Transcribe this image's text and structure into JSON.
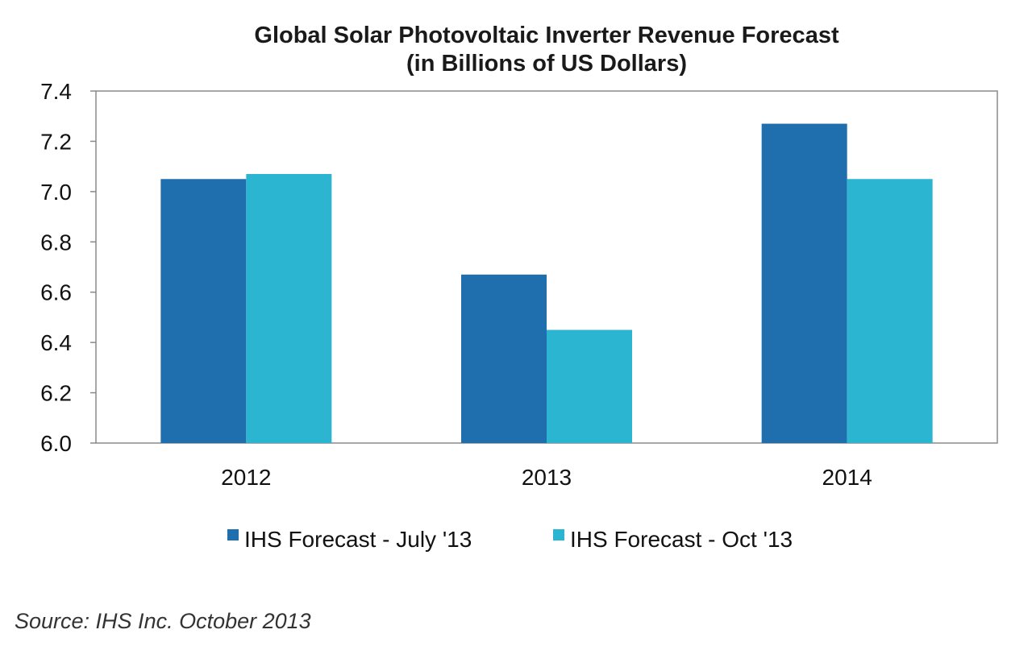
{
  "chart_data": {
    "type": "bar",
    "title": "Global Solar Photovoltaic Inverter Revenue Forecast",
    "subtitle": "(in Billions of US Dollars)",
    "xlabel": "",
    "ylabel": "",
    "categories": [
      "2012",
      "2013",
      "2014"
    ],
    "series": [
      {
        "name": "IHS Forecast - July '13",
        "values": [
          7.05,
          6.67,
          7.27
        ],
        "color": "#1f6faf"
      },
      {
        "name": "IHS Forecast - Oct '13",
        "values": [
          7.07,
          6.45,
          7.05
        ],
        "color": "#2cb5d1"
      }
    ],
    "ylim": [
      6.0,
      7.4
    ],
    "yticks": [
      "6.0",
      "6.2",
      "6.4",
      "6.6",
      "6.8",
      "7.0",
      "7.2",
      "7.4"
    ],
    "grid": false,
    "legend_position": "bottom",
    "source": "Source: IHS Inc. October 2013"
  }
}
